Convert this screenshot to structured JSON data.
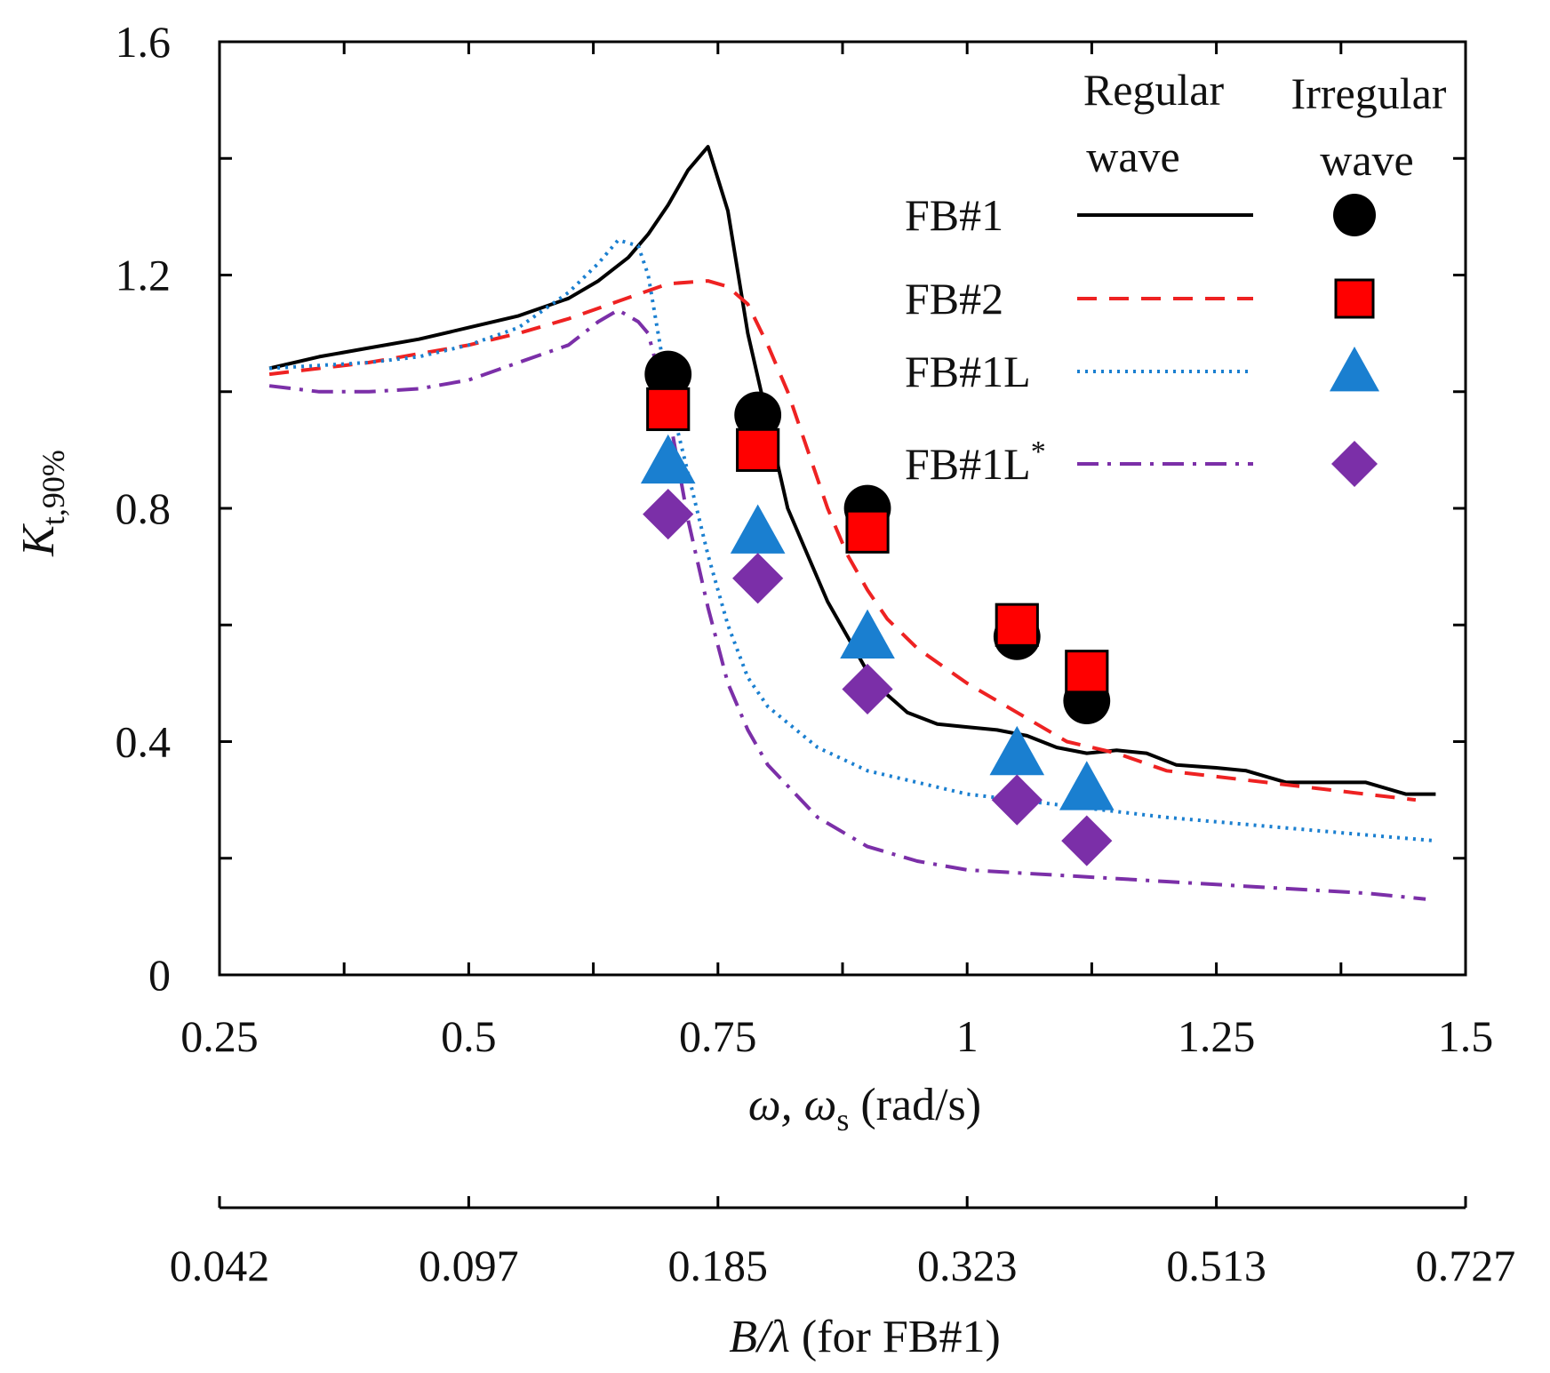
{
  "chart_data": {
    "type": "line",
    "title": "",
    "xlabel": {
      "main": "ω, ω",
      "sub": "s",
      "unit": " (rad/s)"
    },
    "ylabel": {
      "main": "K",
      "sub": "t,90%"
    },
    "xlim": [
      0.25,
      1.5
    ],
    "ylim": [
      0,
      1.6
    ],
    "x_ticks": [
      "0.25",
      "0.5",
      "0.75",
      "1",
      "1.25",
      "1.5"
    ],
    "y_ticks": [
      "0",
      "0.4",
      "0.8",
      "1.2",
      "1.6"
    ],
    "secondary_axis": {
      "label": {
        "main": "B/λ",
        "suffix": " (for FB#1)"
      },
      "ticks": [
        "0.042",
        "0.097",
        "0.185",
        "0.323",
        "0.513",
        "0.727"
      ]
    },
    "legend": {
      "position": "top-right",
      "headers": [
        {
          "line1": "Regular",
          "line2": "wave"
        },
        {
          "line1": "Irregular",
          "line2": "wave"
        }
      ]
    },
    "series": [
      {
        "name": "FB#1",
        "sup": "",
        "color": "#000000",
        "style": "solid",
        "marker": "circle",
        "x": [
          0.3,
          0.35,
          0.4,
          0.45,
          0.5,
          0.55,
          0.6,
          0.63,
          0.66,
          0.68,
          0.7,
          0.72,
          0.74,
          0.76,
          0.78,
          0.8,
          0.82,
          0.84,
          0.86,
          0.88,
          0.9,
          0.92,
          0.94,
          0.97,
          1.0,
          1.03,
          1.06,
          1.09,
          1.12,
          1.15,
          1.18,
          1.21,
          1.25,
          1.28,
          1.32,
          1.36,
          1.4,
          1.44,
          1.47
        ],
        "y": [
          1.04,
          1.06,
          1.075,
          1.09,
          1.11,
          1.13,
          1.16,
          1.19,
          1.23,
          1.27,
          1.32,
          1.38,
          1.42,
          1.31,
          1.1,
          0.95,
          0.8,
          0.72,
          0.64,
          0.58,
          0.52,
          0.48,
          0.45,
          0.43,
          0.425,
          0.42,
          0.41,
          0.39,
          0.38,
          0.385,
          0.38,
          0.36,
          0.355,
          0.35,
          0.33,
          0.33,
          0.33,
          0.31,
          0.31
        ],
        "irregular_x": [
          0.7,
          0.79,
          0.9,
          1.05,
          1.12
        ],
        "irregular_y": [
          1.03,
          0.96,
          0.8,
          0.58,
          0.47
        ]
      },
      {
        "name": "FB#2",
        "sup": "",
        "color": "#ee2222",
        "style": "dashed",
        "marker": "square",
        "x": [
          0.3,
          0.35,
          0.4,
          0.45,
          0.5,
          0.55,
          0.6,
          0.65,
          0.7,
          0.74,
          0.76,
          0.78,
          0.8,
          0.82,
          0.84,
          0.86,
          0.88,
          0.9,
          0.92,
          0.95,
          1.0,
          1.05,
          1.1,
          1.15,
          1.2,
          1.25,
          1.3,
          1.35,
          1.4,
          1.45
        ],
        "y": [
          1.03,
          1.04,
          1.05,
          1.065,
          1.08,
          1.1,
          1.125,
          1.155,
          1.185,
          1.19,
          1.18,
          1.15,
          1.08,
          1.0,
          0.9,
          0.8,
          0.72,
          0.66,
          0.61,
          0.56,
          0.5,
          0.45,
          0.4,
          0.38,
          0.35,
          0.34,
          0.33,
          0.32,
          0.31,
          0.3
        ],
        "irregular_x": [
          0.7,
          0.79,
          0.9,
          1.05,
          1.12
        ],
        "irregular_y": [
          0.97,
          0.9,
          0.76,
          0.6,
          0.52
        ]
      },
      {
        "name": "FB#1L",
        "sup": "",
        "color": "#1a7fd0",
        "style": "dotted",
        "marker": "triangle",
        "x": [
          0.3,
          0.35,
          0.4,
          0.45,
          0.5,
          0.55,
          0.6,
          0.63,
          0.65,
          0.67,
          0.68,
          0.7,
          0.72,
          0.74,
          0.76,
          0.78,
          0.8,
          0.85,
          0.9,
          0.95,
          1.0,
          1.05,
          1.1,
          1.2,
          1.3,
          1.4,
          1.47
        ],
        "y": [
          1.04,
          1.045,
          1.05,
          1.06,
          1.08,
          1.11,
          1.17,
          1.22,
          1.26,
          1.25,
          1.2,
          1.0,
          0.86,
          0.72,
          0.6,
          0.51,
          0.46,
          0.39,
          0.35,
          0.33,
          0.31,
          0.3,
          0.29,
          0.27,
          0.255,
          0.24,
          0.23
        ],
        "irregular_x": [
          0.7,
          0.79,
          0.9,
          1.05,
          1.12
        ],
        "irregular_y": [
          0.88,
          0.76,
          0.58,
          0.38,
          0.32
        ]
      },
      {
        "name": "FB#1L",
        "sup": "*",
        "color": "#7b2fa8",
        "style": "dashdot",
        "marker": "diamond",
        "x": [
          0.3,
          0.35,
          0.4,
          0.45,
          0.5,
          0.55,
          0.6,
          0.63,
          0.65,
          0.67,
          0.68,
          0.7,
          0.72,
          0.74,
          0.76,
          0.78,
          0.8,
          0.85,
          0.9,
          0.95,
          1.0,
          1.05,
          1.1,
          1.2,
          1.3,
          1.4,
          1.46
        ],
        "y": [
          1.01,
          1.0,
          1.0,
          1.005,
          1.02,
          1.05,
          1.08,
          1.12,
          1.14,
          1.12,
          1.1,
          0.97,
          0.78,
          0.63,
          0.5,
          0.42,
          0.36,
          0.27,
          0.22,
          0.195,
          0.18,
          0.175,
          0.17,
          0.16,
          0.15,
          0.14,
          0.13
        ],
        "irregular_x": [
          0.7,
          0.79,
          0.9,
          1.05,
          1.12
        ],
        "irregular_y": [
          0.79,
          0.68,
          0.49,
          0.3,
          0.23
        ]
      }
    ]
  }
}
